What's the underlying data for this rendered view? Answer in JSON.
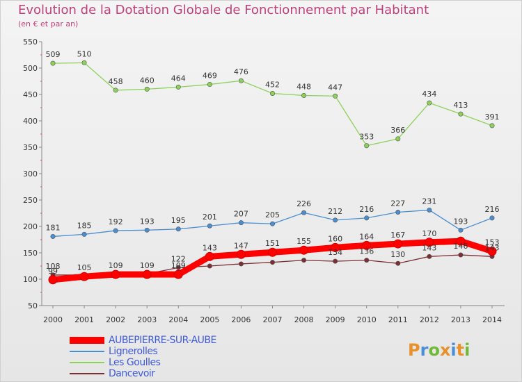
{
  "header": {
    "title": "Evolution de la Dotation Globale de Fonctionnement par Habitant",
    "subtitle": "(en € et par an)"
  },
  "logo": {
    "text": "Proxiti",
    "colors": [
      "#e8902a",
      "#4a8ed8",
      "#70b838",
      "#e8902a",
      "#4a8ed8",
      "#e8902a",
      "#70b838"
    ]
  },
  "chart_data": {
    "type": "line",
    "title": "Evolution de la Dotation Globale de Fonctionnement par Habitant",
    "subtitle": "(en € et par an)",
    "x": [
      "2000",
      "2001",
      "2002",
      "2003",
      "2004",
      "2005",
      "2006",
      "2007",
      "2008",
      "2009",
      "2010",
      "2011",
      "2012",
      "2013",
      "2014"
    ],
    "ylim": [
      50,
      550
    ],
    "yticks": [
      50,
      100,
      150,
      200,
      250,
      300,
      350,
      400,
      450,
      500,
      550
    ],
    "grid": false,
    "legend_position": "bottom-left",
    "series": [
      {
        "name": "AUBEPIERRE-SUR-AUBE",
        "color": "#ff0000",
        "values": [
          99,
          105,
          109,
          109,
          109,
          143,
          147,
          151,
          155,
          160,
          164,
          167,
          170,
          172,
          153
        ],
        "labels": [
          "99",
          "105",
          "109",
          "109",
          "109",
          "143",
          "147",
          "151",
          "155",
          "160",
          "164",
          "167",
          "170",
          "",
          "153"
        ]
      },
      {
        "name": "Lignerolles",
        "color": "#4a8ed0",
        "values": [
          181,
          185,
          192,
          193,
          195,
          201,
          207,
          205,
          226,
          212,
          216,
          227,
          231,
          193,
          216
        ],
        "labels": [
          "181",
          "185",
          "192",
          "193",
          "195",
          "201",
          "207",
          "205",
          "226",
          "212",
          "216",
          "227",
          "231",
          "193",
          "216"
        ]
      },
      {
        "name": "Les Goulles",
        "color": "#8cd15a",
        "values": [
          509,
          510,
          458,
          460,
          464,
          469,
          476,
          452,
          448,
          447,
          353,
          366,
          434,
          413,
          391
        ],
        "labels": [
          "509",
          "510",
          "458",
          "460",
          "464",
          "469",
          "476",
          "452",
          "448",
          "447",
          "353",
          "366",
          "434",
          "413",
          "391"
        ]
      },
      {
        "name": "Dancevoir",
        "color": "#7a2e35",
        "values": [
          108,
          108,
          110,
          110,
          122,
          125,
          129,
          132,
          136,
          134,
          136,
          130,
          143,
          146,
          143
        ],
        "labels": [
          "108",
          "",
          "",
          "",
          "122",
          "",
          "",
          "",
          "",
          "134",
          "136",
          "130",
          "143",
          "146",
          "143"
        ]
      }
    ]
  }
}
